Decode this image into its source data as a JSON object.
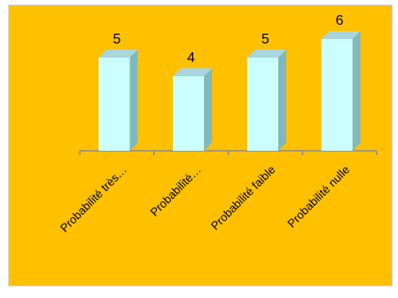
{
  "chart_data": {
    "type": "bar",
    "categories": [
      "Probabilité très…",
      "Probabilité…",
      "Probabilité faible",
      "Probabilité nulle"
    ],
    "values": [
      5,
      4,
      5,
      6
    ],
    "title": "",
    "xlabel": "",
    "ylabel": "",
    "ylim": [
      0,
      6
    ],
    "grid": false,
    "data_labels": [
      "5",
      "4",
      "5",
      "6"
    ],
    "style": "3d-bar",
    "colors": {
      "background": "#ffc000",
      "bar_front": "#ccffff",
      "bar_side": "#7fb8bf",
      "bar_top": "#a9d6dd",
      "axis": "#8c8c8c"
    }
  }
}
